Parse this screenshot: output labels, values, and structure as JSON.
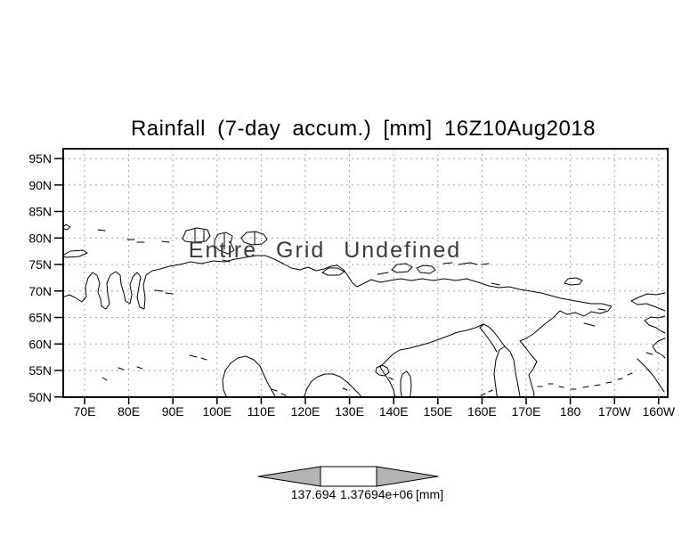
{
  "title": "Rainfall (7-day accum.) [mm] 16Z10Aug2018",
  "overlay_message": "Entire Grid Undefined",
  "map": {
    "lat_labels": [
      "95N",
      "90N",
      "85N",
      "80N",
      "75N",
      "70N",
      "65N",
      "60N",
      "55N",
      "50N"
    ],
    "lon_labels": [
      "70E",
      "80E",
      "90E",
      "100E",
      "110E",
      "120E",
      "130E",
      "140E",
      "150E",
      "160E",
      "170E",
      "180",
      "170W",
      "160W"
    ],
    "region": "Northern Eurasia / Bering / Alaska coastlines",
    "coastline_paths": [
      "M70,334 L78,331 L84,334 L92,339 L97,333 L96,322 L99,312 L104,306 L109,309 L112,318 L110,328 L113,336 L114,344 L119,347 L123,341 L121,330 L120,318 L124,309 L130,305 L135,309 L136,319 L139,329 L141,338 L146,341 L148,331 L146,320 L149,311 L154,306 L158,311 L156,322 L154,334 L157,345 L162,347 L163,335 L161,320 L164,309 L171,304 L180,302 L190,299 L202,297 L214,294 L226,296 L240,293 L252,294 L264,291 L276,289 L288,287 L298,287 L308,291 L318,296 L327,301 L337,303 L346,300 L355,304 L364,302 L372,299 L379,298 L386,303 L391,310 L396,318 L401,322 L409,318 L417,314 L427,317 L438,315 L450,313 L462,315 L474,313 L487,315 L499,313 L512,315 L524,313 L537,317 L549,321 L560,323 L572,322 L584,325 L596,327 L608,329 L619,332 L630,335 L641,337 L652,339 L664,341 L676,341 L687,344 L683,349 L674,352 L664,350 L656,355 L646,351 L637,353 L629,349 L621,357 L613,363 L606,369 L599,375 L591,380 L584,383 L590,390 L596,398 L603,406 L599,414 L594,421 L597,432 L600,442 L598,450",
      "M585,450 L582,434 L579,418 L577,404 L573,395 L567,389 L561,393 L557,404 L555,420 L557,436 L559,450",
      "M567,389 L561,381 L555,373 L549,367 L543,364 L539,368 L544,374 L549,381 L554,388 L558,395",
      "M543,364 L534,368 L524,371 L514,373 L504,377 L493,381 L482,385 L471,388 L460,391 L449,393 L441,398 L434,405 L427,412 L432,420 L438,429 L442,438 L444,447",
      "M341,447 L345,436 L350,428 L357,423 L365,420 L374,420 L382,423 L390,429 L397,436 L403,442 L407,447",
      "M256,449 L251,438 L250,427 L253,416 L259,408 L267,402 L276,400 L285,404 L292,411 L296,420 L300,429 L305,438 L309,445",
      "M452,420 L457,417 L461,423 L462,433 L461,444 L458,450 L452,450 L450,438 L450,427 Z",
      "M423,413 L429,410 L435,413 L437,418 L432,422 L426,421 L422,418 Z M437,424 L441,426",
      "M440,303 L446,297 L456,296 L463,300 L458,305 L446,306 Z M468,301 L476,298 L485,299 L489,303 L483,307 L472,306 Z M498,296 L508,295 M515,297 L528,295 L536,297 M424,308 L436,306 M541,297 L549,296",
      "M362,306 L369,301 L379,301 L387,305 L381,309 L368,309 Z",
      "M205,268 L209,259 L221,256 L233,258 L236,265 L231,271 L218,272 L208,271 Z M219,257 L219,271 M229,258 L229,271 M241,270 L245,263 L254,261 L261,265 L259,273 L263,281 L256,285 L246,281 L241,276 Z M252,262 L252,280 M271,267 L277,261 L287,260 L296,263 L300,269 L294,274 L283,275 L274,272 Z M286,261 L286,274 M250,292 L258,294",
      "M70,256 L74,252 L79,255 L75,258 Z M70,287 L79,282 L93,281 L98,284 L89,288 L74,289 Z M110,258 L118,259 M143,269 L151,269 M154,272 L162,272 M182,271 L190,272 M174,326 L183,327 M186,329 L194,330",
      "M133,413 L139,415 M115,424 L120,427 M154,412 L160,414 M213,399 L221,401 M226,402 L232,404 M305,437 L311,439 M316,442 L321,444 M385,436 L390,438",
      "M634,318 L638,313 L647,312 L654,315 L651,319 L641,320 Z",
      "M672,347 L680,348 M656,363 L668,366 M552,318 L561,320",
      "M747,329 L737,331 L727,330 L717,334 L709,338 L716,342 L726,341 L735,344 L742,347 L747,349 M747,355 L739,357 L731,356 L724,360 L729,365 L737,368 L743,372 L747,374 M747,380 L739,383 L733,389 L737,395 L744,399 L747,402 M716,403 L725,412 L733,421 L740,431 L746,440 M726,396 L733,398",
      "M604,434 L609,434 M616,431 L621,431 M628,434 L633,435 M641,437 L647,437 M655,435 L661,434 M668,433 L674,432 M681,430 L687,429 M694,426 L699,425 M705,421 L710,419 M540,444 L545,442 M549,440 L553,438"
    ]
  },
  "colorbar": {
    "left_label": "137.694",
    "right_label": "1.37694e+06",
    "unit_label": "[mm]",
    "arrow_color": "#b4b4b4",
    "box_color": "#ffffff"
  },
  "colors": {
    "grid": "#a8a8a8",
    "coast": "#000000",
    "frame": "#000000",
    "overlay_text": "#3a3a3a"
  }
}
